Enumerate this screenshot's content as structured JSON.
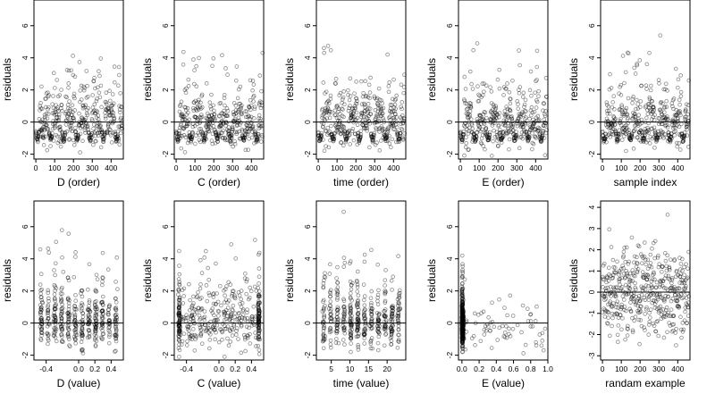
{
  "chart_data": [
    {
      "type": "scatter",
      "panel": "D (order)",
      "xlabel": "D (order)",
      "ylabel": "residuals",
      "xlim": [
        -10,
        465
      ],
      "ylim": [
        -2.3,
        7.6
      ],
      "xticks": [
        0,
        100,
        200,
        300,
        400
      ],
      "yticks": [
        -2,
        0,
        2,
        4,
        6
      ],
      "hline": 0,
      "gen": {
        "kind": "index",
        "n": 460
      }
    },
    {
      "type": "scatter",
      "panel": "C (order)",
      "xlabel": "C (order)",
      "ylabel": "residuals",
      "xlim": [
        -10,
        465
      ],
      "ylim": [
        -2.3,
        7.6
      ],
      "xticks": [
        0,
        100,
        200,
        300,
        400
      ],
      "yticks": [
        -2,
        0,
        2,
        4,
        6
      ],
      "hline": 0,
      "gen": {
        "kind": "index",
        "n": 460
      }
    },
    {
      "type": "scatter",
      "panel": "time (order)",
      "xlabel": "time (order)",
      "ylabel": "residuals",
      "xlim": [
        -10,
        465
      ],
      "ylim": [
        -2.3,
        7.6
      ],
      "xticks": [
        0,
        100,
        200,
        300,
        400
      ],
      "yticks": [
        -2,
        0,
        2,
        4,
        6
      ],
      "hline": 0,
      "gen": {
        "kind": "index",
        "n": 460
      }
    },
    {
      "type": "scatter",
      "panel": "E (order)",
      "xlabel": "E (order)",
      "ylabel": "residuals",
      "xlim": [
        -10,
        465
      ],
      "ylim": [
        -2.3,
        7.6
      ],
      "xticks": [
        0,
        100,
        200,
        300,
        400
      ],
      "yticks": [
        -2,
        0,
        2,
        4,
        6
      ],
      "hline": 0,
      "gen": {
        "kind": "index",
        "n": 460
      }
    },
    {
      "type": "scatter",
      "panel": "sample index",
      "xlabel": "sample index",
      "ylabel": "residuals",
      "xlim": [
        -10,
        465
      ],
      "ylim": [
        -2.3,
        7.6
      ],
      "xticks": [
        0,
        100,
        200,
        300,
        400
      ],
      "yticks": [
        -2,
        0,
        2,
        4,
        6
      ],
      "hline": 0,
      "gen": {
        "kind": "index",
        "n": 460
      }
    },
    {
      "type": "scatter",
      "panel": "D (value)",
      "xlabel": "D (value)",
      "ylabel": "residuals",
      "xlim": [
        -0.55,
        0.55
      ],
      "ylim": [
        -2.3,
        7.6
      ],
      "xticks": [
        -0.4,
        0,
        0.2,
        0.4
      ],
      "xticklabels": [
        "-0.4",
        "0.0",
        "0.2",
        "0.4"
      ],
      "yticks": [
        -2,
        0,
        2,
        4,
        6
      ],
      "hline": 0,
      "gen": {
        "kind": "value_uniform",
        "min": -0.5,
        "max": 0.5,
        "n": 460
      }
    },
    {
      "type": "scatter",
      "panel": "C (value)",
      "xlabel": "C (value)",
      "ylabel": "residuals",
      "xlim": [
        -0.55,
        0.55
      ],
      "ylim": [
        -2.3,
        7.6
      ],
      "xticks": [
        -0.4,
        0,
        0.2,
        0.4
      ],
      "xticklabels": [
        "-0.4",
        "0.0",
        "0.2",
        "0.4"
      ],
      "yticks": [
        -2,
        0,
        2,
        4,
        6
      ],
      "hline": 0,
      "gen": {
        "kind": "value_clusters",
        "clusters": [
          -0.49,
          0.49
        ],
        "min": -0.5,
        "max": 0.5,
        "n": 460
      }
    },
    {
      "type": "scatter",
      "panel": "time (value)",
      "xlabel": "time (value)",
      "ylabel": "residuals",
      "xlim": [
        1,
        25
      ],
      "ylim": [
        -2.3,
        7.6
      ],
      "xticks": [
        5,
        10,
        15,
        20
      ],
      "yticks": [
        -2,
        0,
        2,
        4,
        6
      ],
      "hline": 0,
      "gen": {
        "kind": "value_uniform",
        "min": 2,
        "max": 24,
        "n": 460
      }
    },
    {
      "type": "scatter",
      "panel": "E (value)",
      "xlabel": "E (value)",
      "ylabel": "residuals",
      "xlim": [
        -0.04,
        1.0
      ],
      "ylim": [
        -2.3,
        7.6
      ],
      "xticks": [
        0,
        0.2,
        0.4,
        0.6,
        0.8,
        1.0
      ],
      "xticklabels": [
        "0.0",
        "0.2",
        "0.4",
        "0.6",
        "0.8",
        "1.0"
      ],
      "yticks": [
        -2,
        0,
        2,
        4,
        6
      ],
      "hline": 0,
      "gen": {
        "kind": "value_skew",
        "min": 0,
        "max": 1,
        "n": 460
      }
    },
    {
      "type": "scatter",
      "panel": "randam example",
      "xlabel": "randam example",
      "ylabel": "residuals",
      "xlim": [
        -10,
        465
      ],
      "ylim": [
        -3.2,
        4.3
      ],
      "xticks": [
        0,
        100,
        200,
        300,
        400
      ],
      "yticks": [
        -3,
        -2,
        -1,
        0,
        1,
        2,
        3,
        4
      ],
      "hline": 0,
      "gen": {
        "kind": "random",
        "n": 460
      }
    }
  ]
}
